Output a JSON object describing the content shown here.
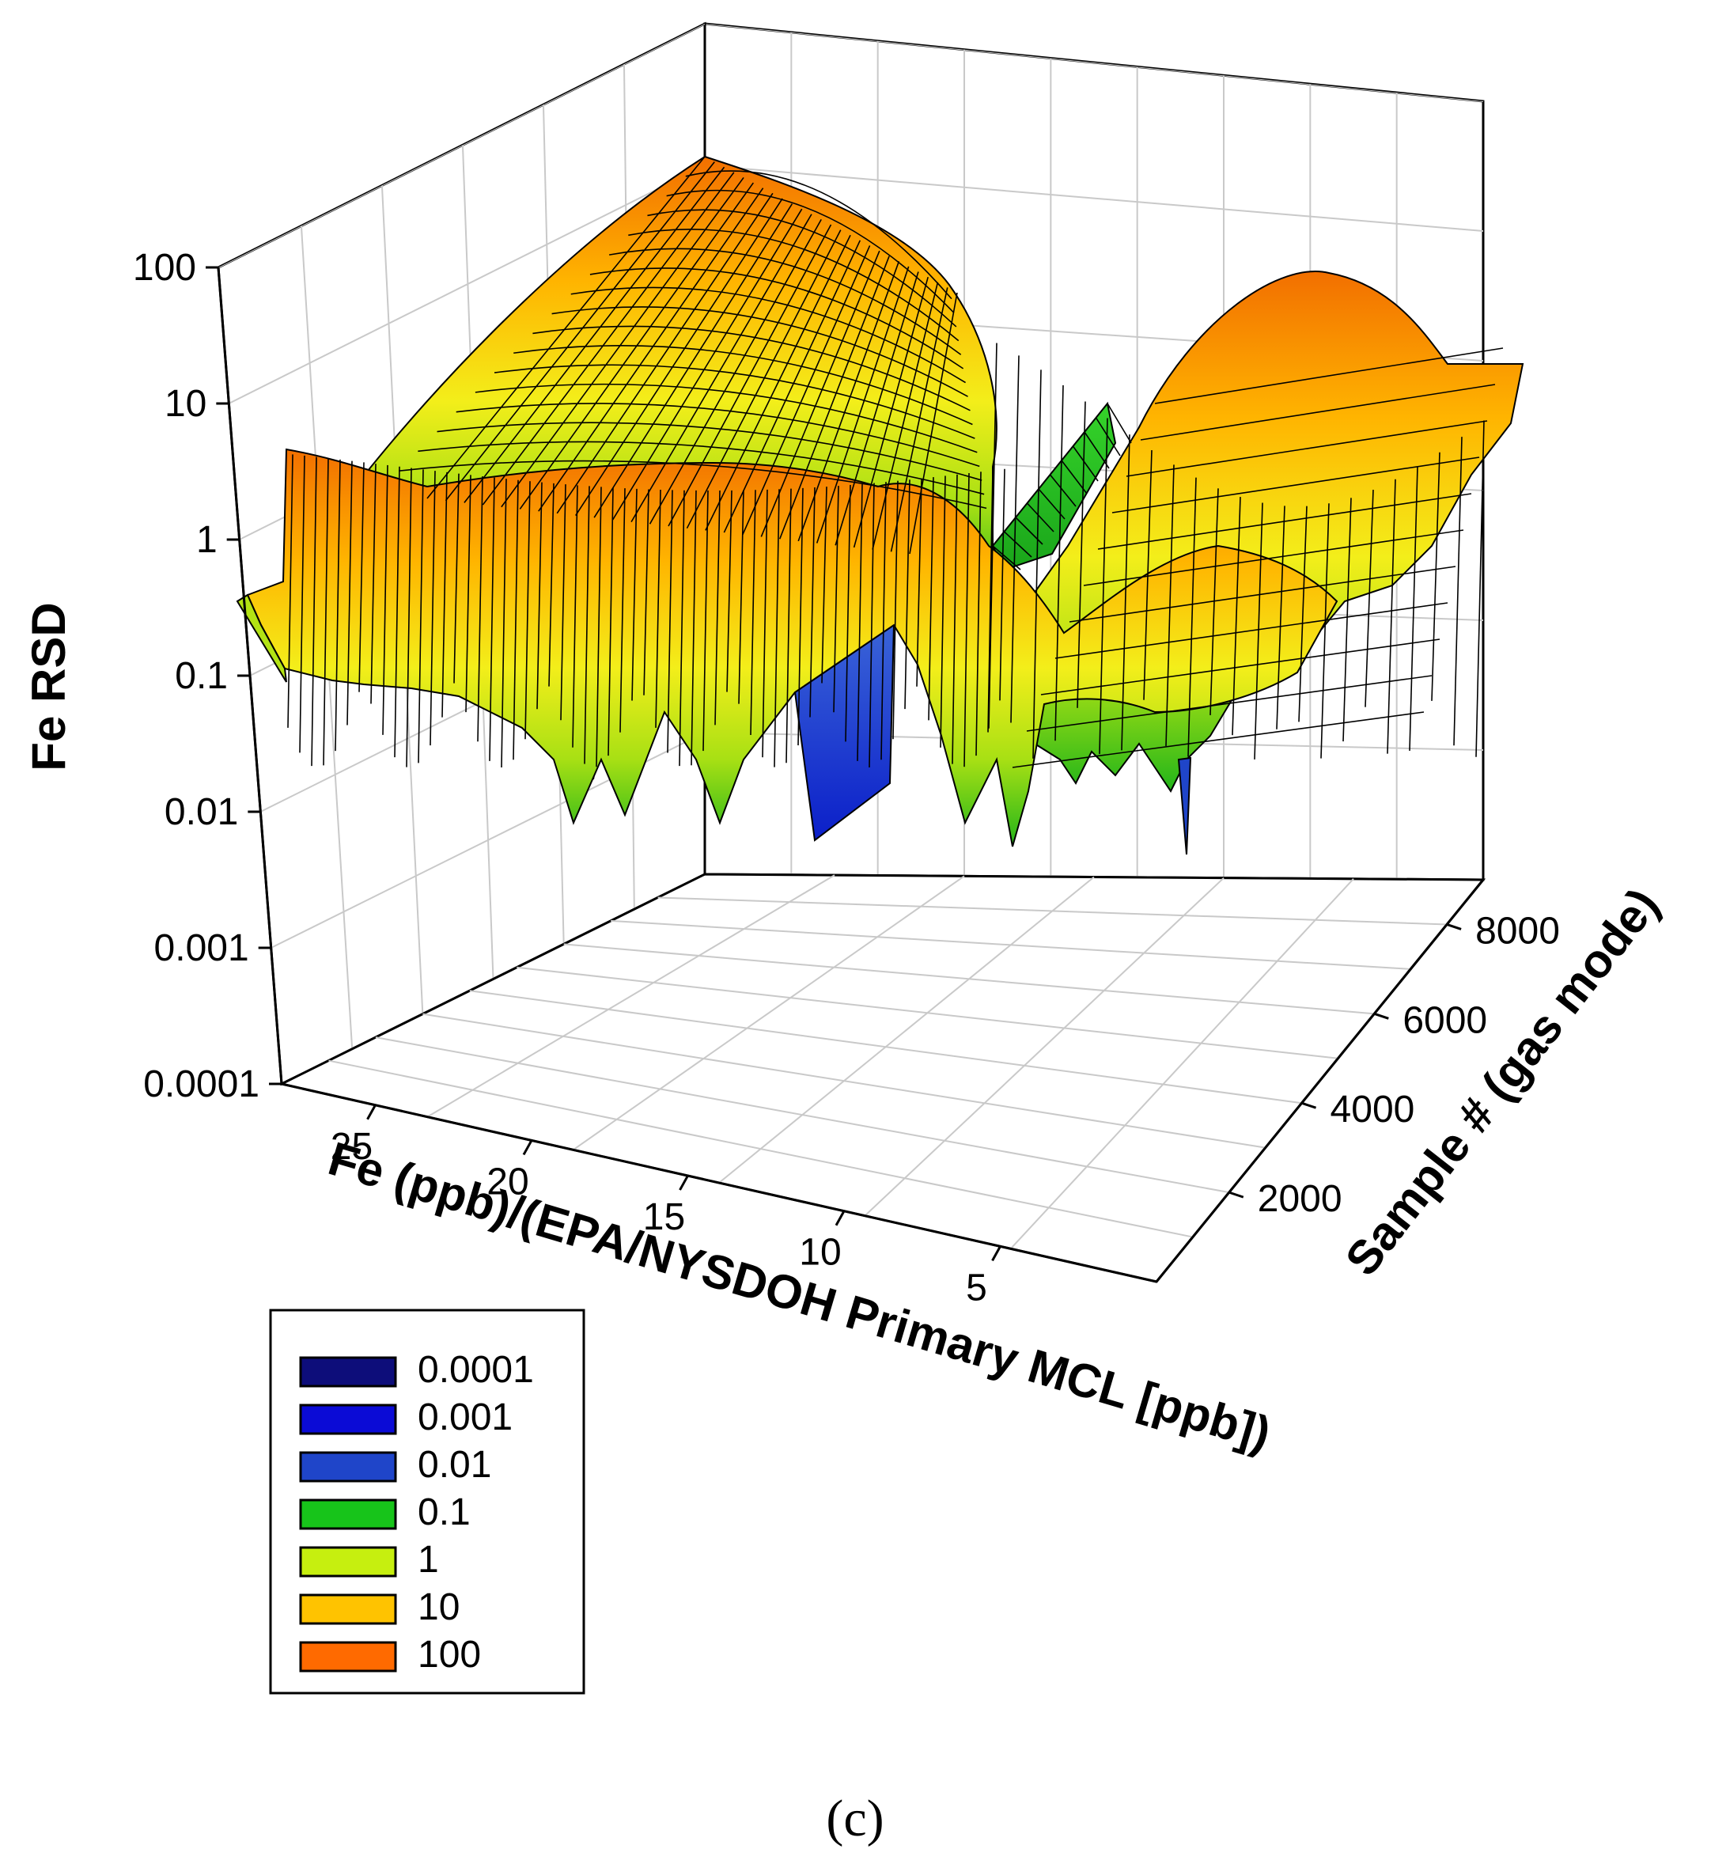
{
  "chart_data": {
    "type": "surface3d",
    "z_axis": {
      "label": "Fe RSD",
      "scale": "log",
      "range": [
        0.0001,
        100
      ],
      "ticks": [
        "0.0001",
        "0.001",
        "0.01",
        "0.1",
        "1",
        "10",
        "100"
      ]
    },
    "x_axis": {
      "label": "Fe (ppb)/(EPA/NYSDOH Primary MCL [ppb])",
      "range": [
        0,
        28
      ],
      "ticks": [
        "25",
        "20",
        "15",
        "10",
        "5"
      ]
    },
    "y_axis": {
      "label": "Sample # (gas mode)",
      "range": [
        0,
        9000
      ],
      "ticks": [
        "2000",
        "4000",
        "6000",
        "8000"
      ]
    },
    "legend": {
      "placement": "bottom-left",
      "entries": [
        {
          "label": "0.0001",
          "color": "#0d0d7a"
        },
        {
          "label": "0.001",
          "color": "#0b0bd6"
        },
        {
          "label": "0.01",
          "color": "#1f45c9"
        },
        {
          "label": "0.1",
          "color": "#17c41a"
        },
        {
          "label": "1",
          "color": "#c6ef0f"
        },
        {
          "label": "10",
          "color": "#ffc300"
        },
        {
          "label": "100",
          "color": "#ff6a00"
        }
      ]
    },
    "grid": true,
    "panel_label": "(c)"
  }
}
